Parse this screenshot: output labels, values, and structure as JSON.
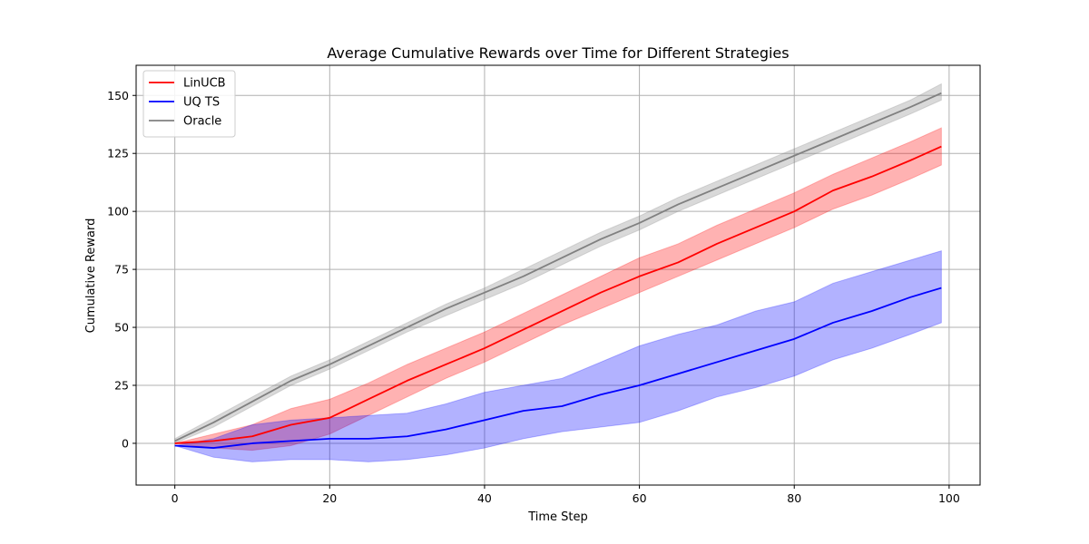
{
  "chart_data": {
    "type": "line",
    "title": "Average Cumulative Rewards over Time for Different Strategies",
    "xlabel": "Time Step",
    "ylabel": "Cumulative Reward",
    "xlim": [
      -5,
      104
    ],
    "ylim": [
      -18,
      163
    ],
    "xticks": [
      0,
      20,
      40,
      60,
      80,
      100
    ],
    "yticks": [
      0,
      25,
      50,
      75,
      100,
      125,
      150
    ],
    "grid": true,
    "legend_position": "top-left",
    "series": [
      {
        "name": "LinUCB",
        "color": "#ff0000",
        "band_color": "#ff0000",
        "band_opacity": 0.3,
        "x": [
          0,
          5,
          10,
          15,
          20,
          25,
          30,
          35,
          40,
          45,
          50,
          55,
          60,
          65,
          70,
          75,
          80,
          85,
          90,
          95,
          99
        ],
        "mean": [
          0,
          1,
          3,
          8,
          11,
          19,
          27,
          34,
          41,
          49,
          57,
          65,
          72,
          78,
          86,
          93,
          100,
          109,
          115,
          122,
          128
        ],
        "lower": [
          0,
          -2,
          -3,
          -1,
          4,
          12,
          20,
          28,
          35,
          43,
          51,
          58,
          65,
          72,
          79,
          86,
          93,
          101,
          107,
          114,
          120
        ],
        "upper": [
          0,
          4,
          8,
          15,
          19,
          26,
          34,
          41,
          48,
          56,
          64,
          72,
          80,
          86,
          94,
          101,
          108,
          116,
          123,
          130,
          136
        ]
      },
      {
        "name": "UQ TS",
        "color": "#0000ff",
        "band_color": "#0000ff",
        "band_opacity": 0.3,
        "x": [
          0,
          5,
          10,
          15,
          20,
          25,
          30,
          35,
          40,
          45,
          50,
          55,
          60,
          65,
          70,
          75,
          80,
          85,
          90,
          95,
          99
        ],
        "mean": [
          -1,
          -2,
          0,
          1,
          2,
          2,
          3,
          6,
          10,
          14,
          16,
          21,
          25,
          30,
          35,
          40,
          45,
          52,
          57,
          63,
          67
        ],
        "lower": [
          -1,
          -6,
          -8,
          -7,
          -7,
          -8,
          -7,
          -5,
          -2,
          2,
          5,
          7,
          9,
          14,
          20,
          24,
          29,
          36,
          41,
          47,
          52
        ],
        "upper": [
          -1,
          2,
          8,
          10,
          11,
          12,
          13,
          17,
          22,
          25,
          28,
          35,
          42,
          47,
          51,
          57,
          61,
          69,
          74,
          79,
          83
        ]
      },
      {
        "name": "Oracle",
        "color": "#808080",
        "band_color": "#808080",
        "band_opacity": 0.3,
        "x": [
          0,
          5,
          10,
          15,
          20,
          25,
          30,
          35,
          40,
          45,
          50,
          55,
          60,
          65,
          70,
          75,
          80,
          85,
          90,
          95,
          99
        ],
        "mean": [
          1,
          9,
          18,
          27,
          34,
          42,
          50,
          58,
          65,
          72,
          80,
          88,
          95,
          103,
          110,
          117,
          124,
          131,
          138,
          145,
          151
        ],
        "lower": [
          0,
          7,
          16,
          25,
          32,
          40,
          48,
          55,
          62,
          69,
          77,
          85,
          92,
          100,
          107,
          114,
          121,
          128,
          135,
          142,
          148
        ],
        "upper": [
          2,
          11,
          20,
          29,
          36,
          44,
          52,
          60,
          67,
          75,
          83,
          91,
          98,
          106,
          113,
          120,
          127,
          134,
          141,
          148,
          155
        ]
      }
    ]
  }
}
